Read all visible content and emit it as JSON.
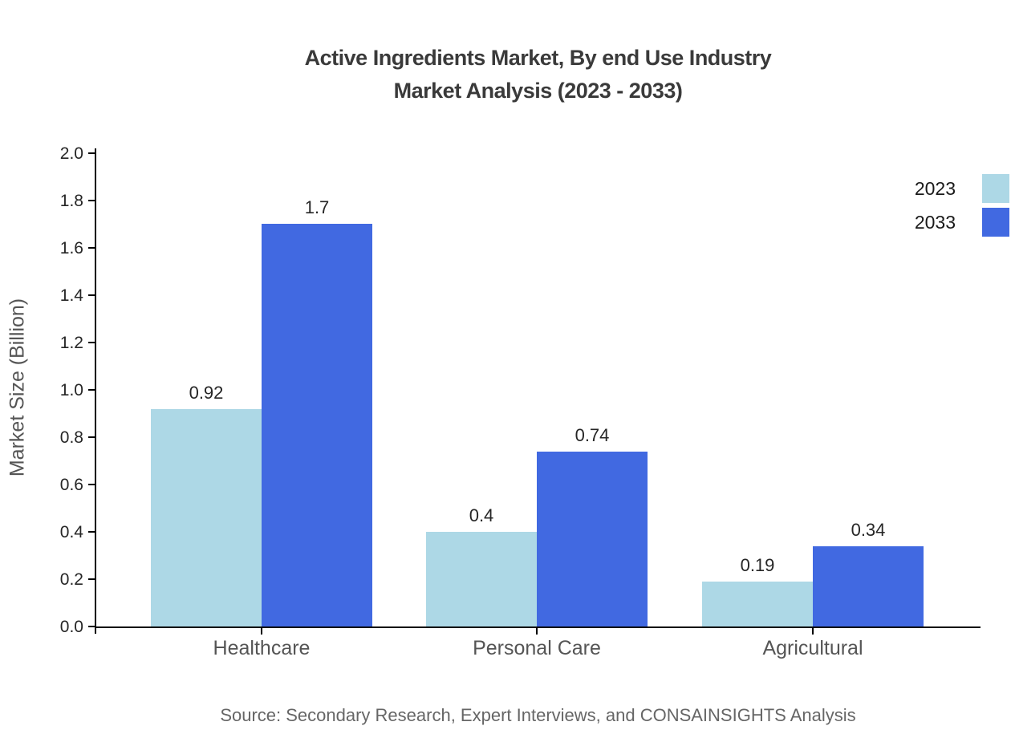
{
  "title": {
    "line1": "Active Ingredients Market, By end Use Industry",
    "line2": "Market Analysis (2023 - 2033)"
  },
  "source": "Source: Secondary Research, Expert Interviews, and CONSAINSIGHTS Analysis",
  "chart_data": {
    "type": "bar",
    "categories": [
      "Healthcare",
      "Personal Care",
      "Agricultural"
    ],
    "series": [
      {
        "name": "2023",
        "color": "#ADD8E6",
        "values": [
          0.92,
          0.4,
          0.19
        ]
      },
      {
        "name": "2033",
        "color": "#4169E1",
        "values": [
          1.7,
          0.74,
          0.34
        ]
      }
    ],
    "title": "Active Ingredients Market, By end Use Industry Market Analysis (2023 - 2033)",
    "xlabel": "",
    "ylabel": "Market Size (Billion)",
    "ylim": [
      0.0,
      2.0
    ],
    "ytick_labels": [
      "0.0",
      "0.2",
      "0.4",
      "0.6",
      "0.8",
      "1.0",
      "1.2",
      "1.4",
      "1.6",
      "1.8",
      "2.0"
    ],
    "grid": false,
    "bar_value_labels": [
      "0.92",
      "1.7",
      "0.4",
      "0.74",
      "0.19",
      "0.34"
    ],
    "legend_position": "upper right"
  }
}
